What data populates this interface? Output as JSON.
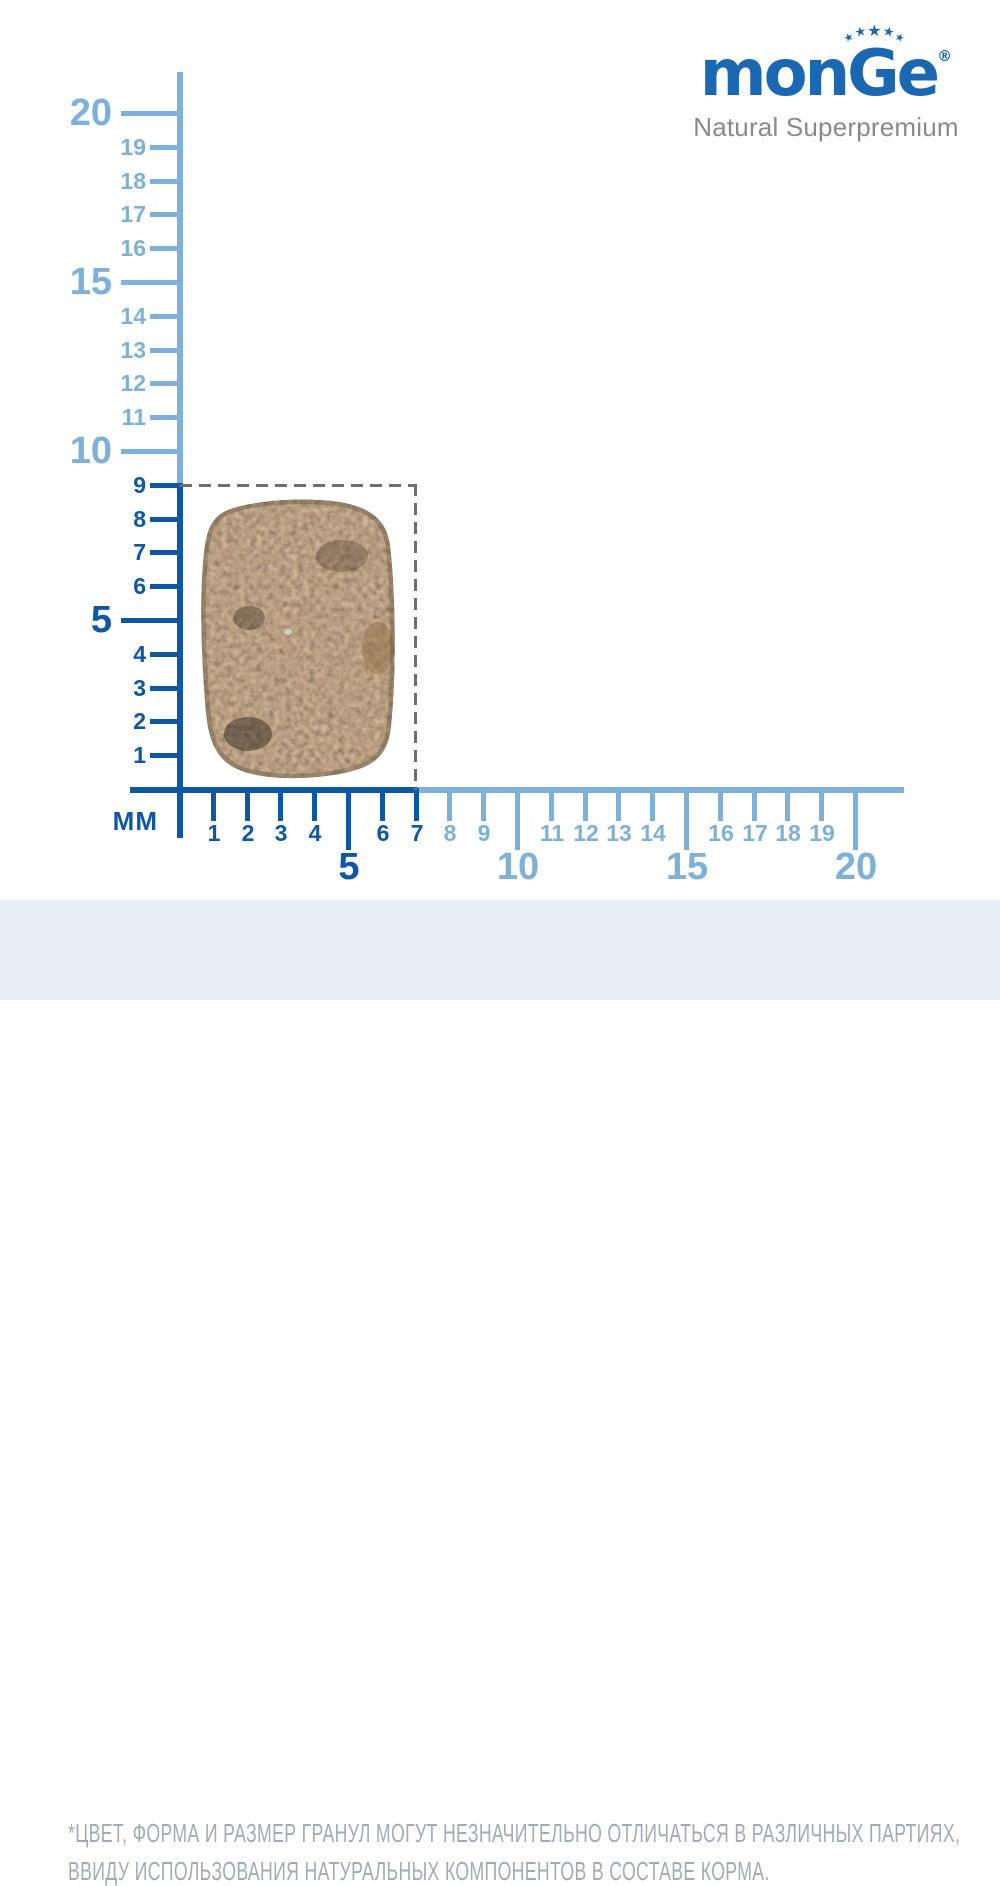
{
  "brand": {
    "logo_part_mon": "mon",
    "logo_part_g": "G",
    "logo_part_e": "e",
    "registered_mark": "®",
    "tagline": "Natural Superpremium",
    "stars_count": 5,
    "star_glyph": "★",
    "logo_color": "#1a68b2",
    "tagline_color": "#8a8a8a"
  },
  "ruler": {
    "unit_label": "ММ",
    "range_mm": {
      "min": 0,
      "max": 20
    },
    "colors": {
      "dark_blue": "#0f57a5",
      "light_blue": "#7fb1d8",
      "dashed_outline": "#6f6f6f"
    },
    "y_axis": {
      "dark_upto_mm": 9,
      "major_ticks": [
        5,
        10,
        15,
        20
      ],
      "minor_tick_labels": [
        "1",
        "2",
        "3",
        "4",
        "6",
        "7",
        "8",
        "9",
        "11",
        "12",
        "13",
        "14",
        "16",
        "17",
        "18",
        "19"
      ]
    },
    "x_axis": {
      "dark_upto_mm": 7,
      "major_ticks": [
        5,
        10,
        15,
        20
      ],
      "minor_tick_labels": [
        "1",
        "2",
        "3",
        "4",
        "6",
        "7",
        "8",
        "9",
        "11",
        "12",
        "13",
        "14",
        "16",
        "17",
        "18",
        "19"
      ]
    }
  },
  "kibble": {
    "width_mm": 7,
    "height_mm": 9,
    "base_color": "#705033"
  },
  "footnote": {
    "line1": "*ЦВЕТ, ФОРМА И РАЗМЕР ГРАНУЛ МОГУТ НЕЗНАЧИТЕЛЬНО ОТЛИЧАТЬСЯ В РАЗЛИЧНЫХ ПАРТИЯХ,",
    "line2": "ВВИДУ ИСПОЛЬЗОВАНИЯ НАТУРАЛЬНЫХ КОМПОНЕНТОВ В СОСТАВЕ КОРМА.",
    "background": "#e8eef5",
    "text_color": "#a2aab3"
  }
}
